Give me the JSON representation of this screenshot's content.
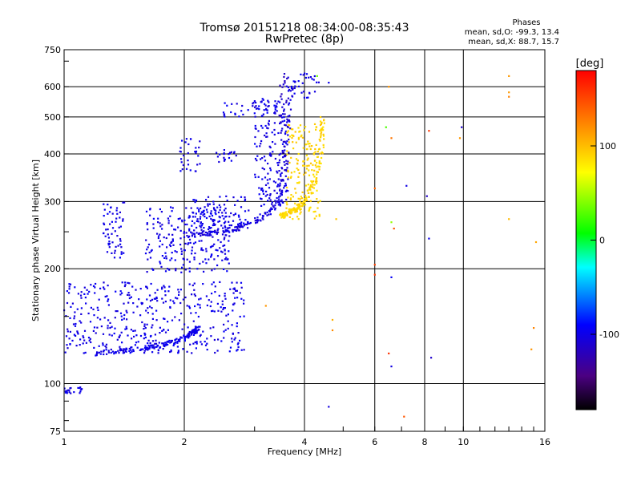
{
  "chart_data": {
    "type": "scatter",
    "title": "Tromsø 20151218 08:34:00-08:35:43",
    "subtitle": "RwPretec (8p)",
    "xlabel": "Frequency [MHz]",
    "ylabel": "Stationary phase Virtual Height [km]",
    "x_scale": "log",
    "y_scale": "log",
    "xlim": [
      1,
      16
    ],
    "ylim": [
      75,
      750
    ],
    "x_ticks": [
      1,
      2,
      4,
      6,
      8,
      10,
      16
    ],
    "x_tick_labels": [
      "1",
      "2",
      "4",
      "6",
      "8",
      "10",
      "16"
    ],
    "y_ticks": [
      75,
      100,
      200,
      300,
      400,
      500,
      600,
      750
    ],
    "y_tick_labels": [
      "75",
      "100",
      "200",
      "300",
      "400",
      "500",
      "600",
      "750"
    ],
    "grid": true,
    "colorbar": {
      "label": "[deg]",
      "range": [
        -180,
        180
      ],
      "ticks": [
        100,
        0,
        -100
      ],
      "tick_labels": [
        "100",
        "0",
        "-100"
      ]
    },
    "phase_legend": {
      "heading": "Phases",
      "line_o": "mean, sd,O: -99.3, 13.4",
      "line_x": "mean, sd,X: 88.7, 15.7"
    },
    "traces": [
      {
        "x": [
          1.2,
          1.4,
          1.6,
          1.8,
          2.0,
          2.1,
          2.15
        ],
        "y": [
          120,
          122,
          124,
          127,
          132,
          136,
          140
        ],
        "phase": -100
      },
      {
        "x": [
          2.0,
          2.3,
          2.7,
          3.0,
          3.3,
          3.5,
          3.6,
          3.7
        ],
        "y": [
          245,
          248,
          255,
          265,
          285,
          310,
          400,
          600
        ],
        "phase": -105
      },
      {
        "x": [
          3.5,
          3.6,
          3.8,
          4.0,
          4.2,
          4.4,
          4.45
        ],
        "y": [
          275,
          280,
          285,
          300,
          330,
          400,
          500
        ],
        "phase": 90
      }
    ],
    "clusters": [
      {
        "x": [
          1.0,
          2.85
        ],
        "y": [
          120,
          185
        ],
        "phase": -100
      },
      {
        "x": [
          1.0,
          1.12
        ],
        "y": [
          94,
          98
        ],
        "phase": -100
      },
      {
        "x": [
          1.25,
          1.42
        ],
        "y": [
          210,
          300
        ],
        "phase": -100
      },
      {
        "x": [
          1.6,
          2.6
        ],
        "y": [
          195,
          290
        ],
        "phase": -100
      },
      {
        "x": [
          1.95,
          2.2
        ],
        "y": [
          360,
          440
        ],
        "phase": -100
      },
      {
        "x": [
          2.1,
          2.9
        ],
        "y": [
          250,
          310
        ],
        "phase": -100
      },
      {
        "x": [
          2.4,
          2.7
        ],
        "y": [
          380,
          410
        ],
        "phase": -100
      },
      {
        "x": [
          2.5,
          3.4
        ],
        "y": [
          500,
          550
        ],
        "phase": -100
      },
      {
        "x": [
          3.0,
          3.6
        ],
        "y": [
          290,
          560
        ],
        "phase": -100
      },
      {
        "x": [
          3.45,
          3.65
        ],
        "y": [
          300,
          650
        ],
        "phase": -110
      },
      {
        "x": [
          3.75,
          4.35
        ],
        "y": [
          560,
          650
        ],
        "phase": -100
      },
      {
        "x": [
          3.6,
          4.4
        ],
        "y": [
          270,
          480
        ],
        "phase": 90
      }
    ],
    "scattered_points": [
      {
        "x": 6.5,
        "y": 600,
        "phase": 110
      },
      {
        "x": 6.4,
        "y": 470,
        "phase": 20
      },
      {
        "x": 6.6,
        "y": 440,
        "phase": 130
      },
      {
        "x": 7.2,
        "y": 330,
        "phase": -100
      },
      {
        "x": 6.0,
        "y": 325,
        "phase": 140
      },
      {
        "x": 6.6,
        "y": 265,
        "phase": 40
      },
      {
        "x": 6.7,
        "y": 255,
        "phase": 150
      },
      {
        "x": 8.1,
        "y": 310,
        "phase": -110
      },
      {
        "x": 8.2,
        "y": 460,
        "phase": 160
      },
      {
        "x": 9.9,
        "y": 470,
        "phase": -110
      },
      {
        "x": 9.8,
        "y": 440,
        "phase": 110
      },
      {
        "x": 8.2,
        "y": 240,
        "phase": -100
      },
      {
        "x": 6.0,
        "y": 205,
        "phase": 160
      },
      {
        "x": 6.0,
        "y": 193,
        "phase": 150
      },
      {
        "x": 6.6,
        "y": 190,
        "phase": -100
      },
      {
        "x": 6.5,
        "y": 120,
        "phase": 160
      },
      {
        "x": 6.6,
        "y": 111,
        "phase": -100
      },
      {
        "x": 7.1,
        "y": 82,
        "phase": 150
      },
      {
        "x": 8.3,
        "y": 117,
        "phase": -110
      },
      {
        "x": 13.0,
        "y": 640,
        "phase": 120
      },
      {
        "x": 13.0,
        "y": 580,
        "phase": 110
      },
      {
        "x": 13.0,
        "y": 565,
        "phase": 120
      },
      {
        "x": 15.2,
        "y": 235,
        "phase": 110
      },
      {
        "x": 15.0,
        "y": 140,
        "phase": 120
      },
      {
        "x": 14.8,
        "y": 123,
        "phase": 110
      },
      {
        "x": 13.0,
        "y": 270,
        "phase": 100
      },
      {
        "x": 4.0,
        "y": 650,
        "phase": -100
      },
      {
        "x": 4.3,
        "y": 640,
        "phase": 30
      },
      {
        "x": 4.6,
        "y": 615,
        "phase": -100
      },
      {
        "x": 4.8,
        "y": 270,
        "phase": 90
      },
      {
        "x": 3.2,
        "y": 160,
        "phase": 120
      },
      {
        "x": 4.6,
        "y": 87,
        "phase": -100
      },
      {
        "x": 4.7,
        "y": 147,
        "phase": 110
      },
      {
        "x": 4.7,
        "y": 138,
        "phase": 120
      }
    ]
  }
}
